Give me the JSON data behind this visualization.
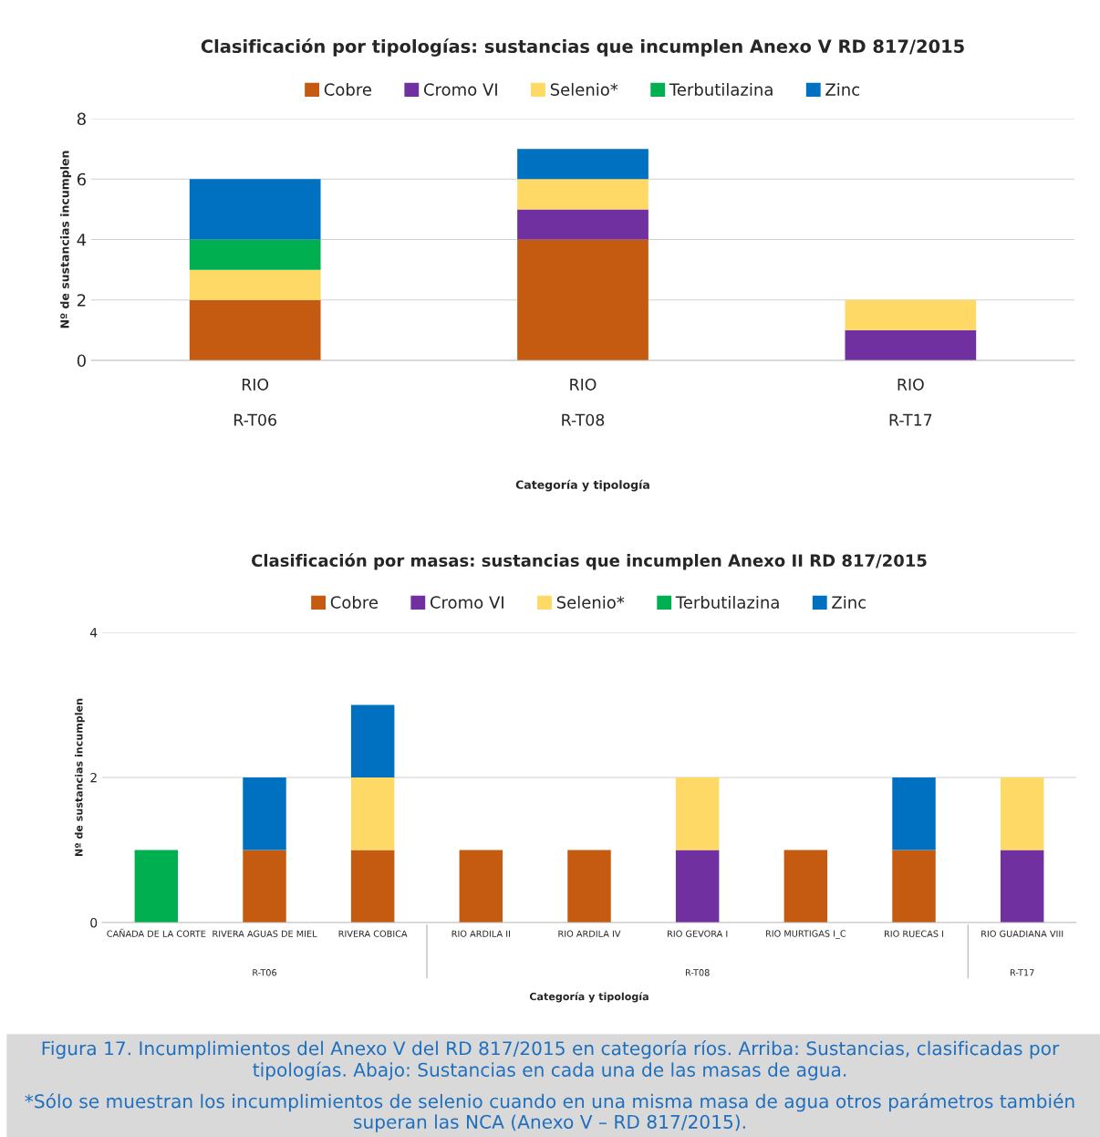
{
  "chart_data": [
    {
      "type": "bar",
      "stacked": true,
      "title": "Clasificación por tipologías: sustancias que incumplen Anexo V RD 817/2015",
      "xlabel": "Categoría y tipología",
      "ylabel": "Nº de sustancias incumplen",
      "categories": [
        "RIO\n\nR-T06",
        "RIO\n\nR-T08",
        "RIO\n\nR-T17"
      ],
      "ylim": [
        0,
        8
      ],
      "yticks": [
        0,
        2,
        4,
        6,
        8
      ],
      "grid": "y",
      "legend": "top",
      "series": [
        {
          "name": "Cobre",
          "color": "#c55a11",
          "values": [
            2,
            4,
            0
          ]
        },
        {
          "name": "Cromo VI",
          "color": "#7030a0",
          "values": [
            0,
            1,
            1
          ]
        },
        {
          "name": "Selenio*",
          "color": "#ffd966",
          "values": [
            1,
            1,
            1
          ]
        },
        {
          "name": "Terbutilazina",
          "color": "#00b050",
          "values": [
            1,
            0,
            0
          ]
        },
        {
          "name": "Zinc",
          "color": "#0070c0",
          "values": [
            2,
            1,
            0
          ]
        }
      ]
    },
    {
      "type": "bar",
      "stacked": true,
      "title": "Clasificación por masas: sustancias que incumplen Anexo II RD 817/2015",
      "xlabel": "Categoría y tipología",
      "ylabel": "Nº de sustancias incumplen",
      "categories": [
        "CAÑADA DE LA CORTE",
        "RIVERA AGUAS DE MIEL",
        "RIVERA COBICA",
        "RIO ARDILA II",
        "RIO ARDILA IV",
        "RIO GEVORA I",
        "RIO MURTIGAS I_C",
        "RIO RUECAS I",
        "RIO GUADIANA VIII"
      ],
      "ylim": [
        0,
        4
      ],
      "yticks": [
        0,
        2,
        4
      ],
      "grid": "y",
      "legend": "top",
      "series": [
        {
          "name": "Cobre",
          "color": "#c55a11",
          "values": [
            0,
            1,
            1,
            1,
            1,
            0,
            1,
            1,
            0
          ]
        },
        {
          "name": "Cromo VI",
          "color": "#7030a0",
          "values": [
            0,
            0,
            0,
            0,
            0,
            1,
            0,
            0,
            1
          ]
        },
        {
          "name": "Selenio*",
          "color": "#ffd966",
          "values": [
            0,
            0,
            1,
            0,
            0,
            1,
            0,
            0,
            1
          ]
        },
        {
          "name": "Terbutilazina",
          "color": "#00b050",
          "values": [
            1,
            0,
            0,
            0,
            0,
            0,
            0,
            0,
            0
          ]
        },
        {
          "name": "Zinc",
          "color": "#0070c0",
          "values": [
            0,
            1,
            1,
            0,
            0,
            0,
            0,
            1,
            0
          ]
        }
      ],
      "annotations": [
        "R-T06",
        "R-T08",
        "R-T17"
      ]
    },
    {
      "type": "other",
      "annotations": [
        "Figura 17. Incumplimientos del Anexo V del RD 817/2015 en categoría ríos. Arriba: Sustancias, clasificadas por tipologías. Abajo: Sustancias en cada una de las masas de agua.",
        "*Sólo se muestran los incumplimientos de selenio cuando en una misma masa de agua otros parámetros también superan las NCA (Anexo V – RD 817/2015)."
      ]
    }
  ]
}
